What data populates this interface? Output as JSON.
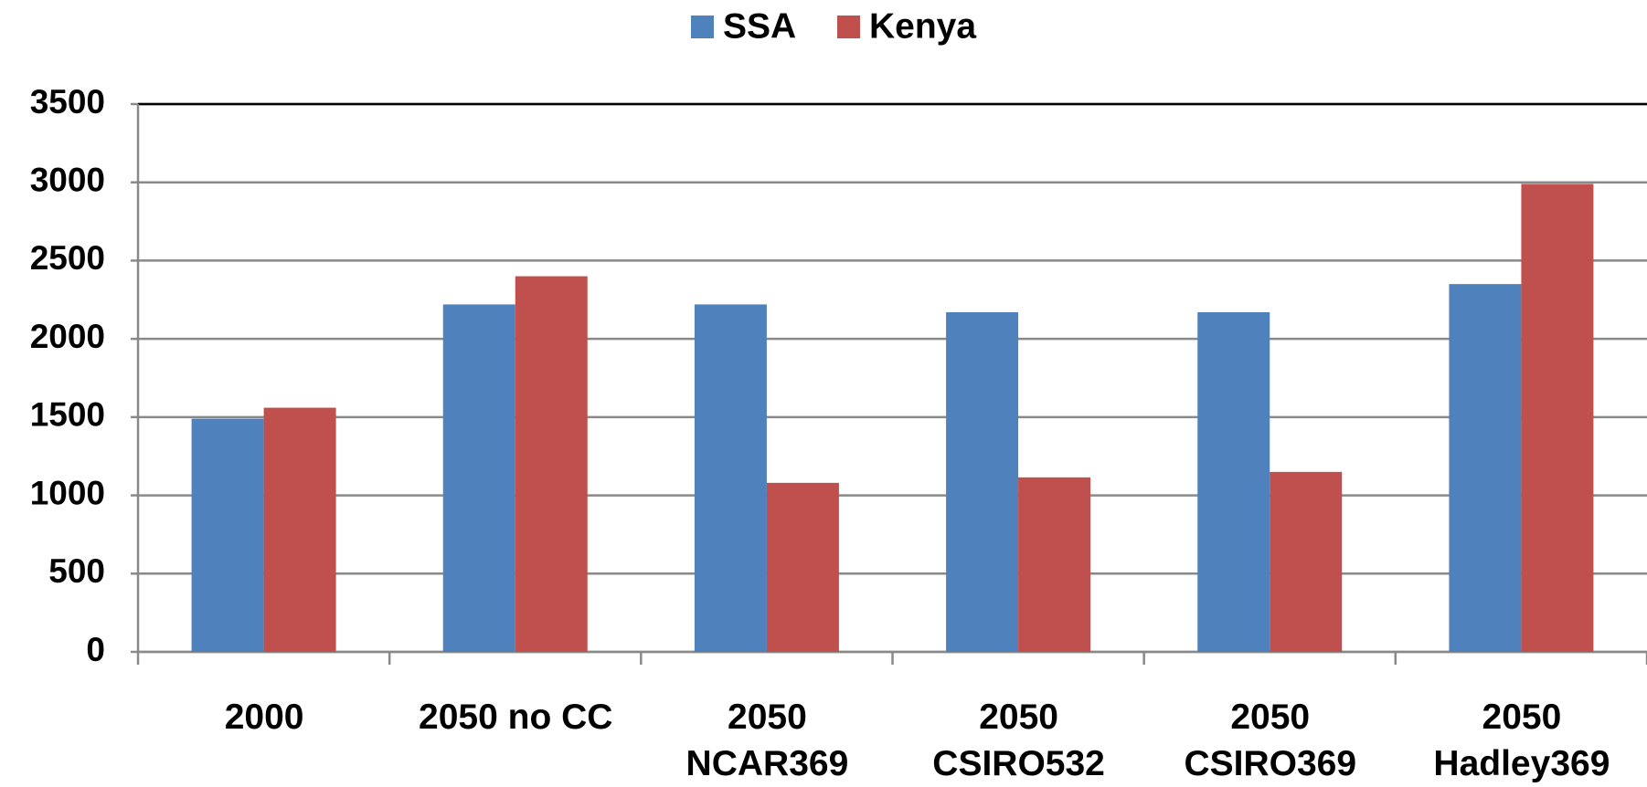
{
  "chart_data": {
    "type": "bar",
    "categories": [
      "2000",
      "2050 no CC",
      "2050\nNCAR369",
      "2050\nCSIRO532",
      "2050\nCSIRO369",
      "2050\nHadley369"
    ],
    "series": [
      {
        "name": "SSA",
        "color": "#4f81bd",
        "values": [
          1490,
          2220,
          2220,
          2170,
          2170,
          2350
        ]
      },
      {
        "name": "Kenya",
        "color": "#c0504d",
        "values": [
          1560,
          2400,
          1080,
          1115,
          1150,
          2990
        ]
      }
    ],
    "ylim": [
      0,
      3500
    ],
    "yticks": [
      0,
      500,
      1000,
      1500,
      2000,
      2500,
      3000,
      3500
    ],
    "grid": true,
    "legend": "top"
  }
}
